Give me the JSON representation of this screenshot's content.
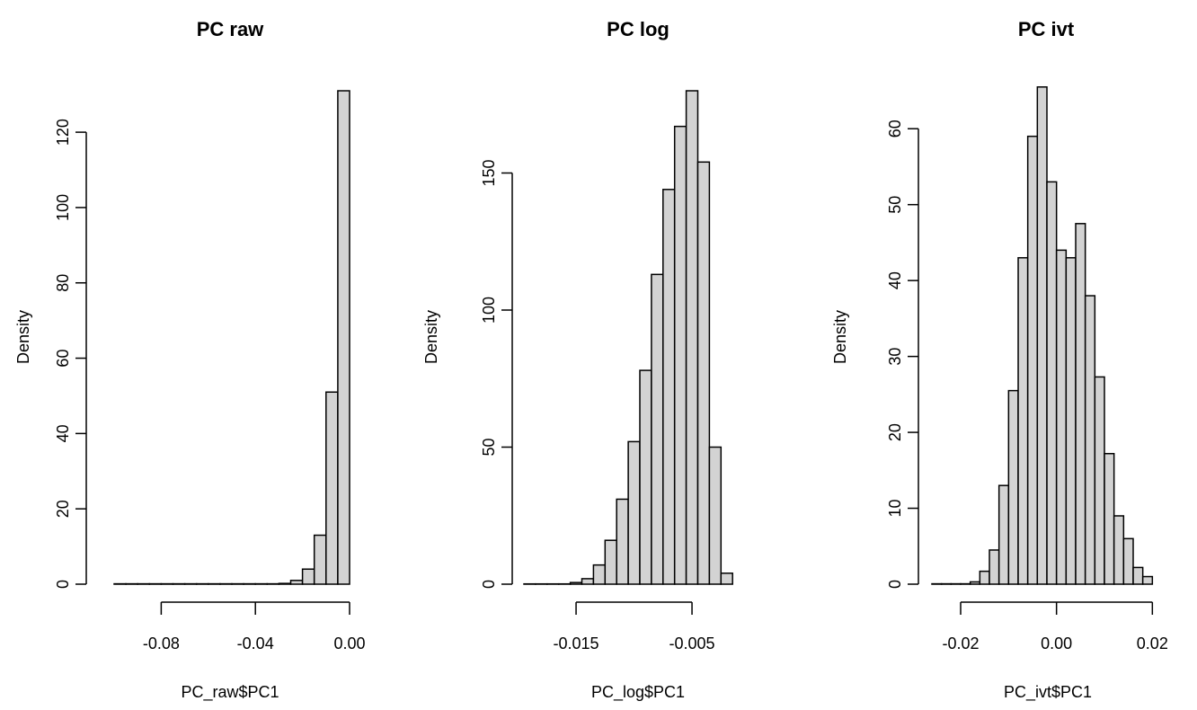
{
  "chart_data": [
    {
      "type": "histogram",
      "title": "PC raw",
      "xlabel": "PC_raw$PC1",
      "ylabel": "Density",
      "xlim": [
        -0.1,
        0.0
      ],
      "ylim": [
        0,
        131
      ],
      "x_ticks": [
        -0.08,
        -0.04,
        0.0
      ],
      "x_tick_labels": [
        "-0.08",
        "-0.04",
        "0.00"
      ],
      "y_ticks": [
        0,
        20,
        40,
        60,
        80,
        100,
        120
      ],
      "y_tick_labels": [
        "0",
        "20",
        "40",
        "60",
        "80",
        "100",
        "120"
      ],
      "bin_edges": [
        -0.1,
        -0.095,
        -0.09,
        -0.085,
        -0.08,
        -0.075,
        -0.07,
        -0.065,
        -0.06,
        -0.055,
        -0.05,
        -0.045,
        -0.04,
        -0.035,
        -0.03,
        -0.025,
        -0.02,
        -0.015,
        -0.01,
        -0.005,
        0.0
      ],
      "values": [
        0.1,
        0.1,
        0.1,
        0.1,
        0.1,
        0.1,
        0.1,
        0.1,
        0.1,
        0.1,
        0.1,
        0.1,
        0.1,
        0.1,
        0.2,
        1,
        4,
        13,
        51,
        131
      ],
      "bar_color": "#d3d3d3",
      "grid": false
    },
    {
      "type": "histogram",
      "title": "PC log",
      "xlabel": "PC_log$PC1",
      "ylabel": "Density",
      "xlim": [
        -0.0195,
        0.0005
      ],
      "ylim": [
        0,
        180
      ],
      "x_ticks": [
        -0.015,
        -0.005
      ],
      "x_tick_labels": [
        "-0.015",
        "-0.005"
      ],
      "y_ticks": [
        0,
        50,
        100,
        150
      ],
      "y_tick_labels": [
        "0",
        "50",
        "100",
        "150"
      ],
      "bin_edges": [
        -0.0195,
        -0.0185,
        -0.0175,
        -0.0165,
        -0.0155,
        -0.0145,
        -0.0135,
        -0.0125,
        -0.0115,
        -0.0105,
        -0.0095,
        -0.0085,
        -0.0075,
        -0.0065,
        -0.0055,
        -0.0045,
        -0.0035,
        -0.0025,
        -0.0015
      ],
      "values": [
        0.1,
        0.1,
        0.1,
        0.1,
        0.6,
        2,
        7,
        16,
        31,
        52,
        78,
        113,
        144,
        167,
        180,
        154,
        50,
        4
      ],
      "bar_color": "#d3d3d3",
      "grid": false
    },
    {
      "type": "histogram",
      "title": "PC ivt",
      "xlabel": "PC_ivt$PC1",
      "ylabel": "Density",
      "xlim": [
        -0.026,
        0.022
      ],
      "ylim": [
        0,
        65
      ],
      "x_ticks": [
        -0.02,
        0.0,
        0.02
      ],
      "x_tick_labels": [
        "-0.02",
        "0.00",
        "0.02"
      ],
      "y_ticks": [
        0,
        10,
        20,
        30,
        40,
        50,
        60
      ],
      "y_tick_labels": [
        "0",
        "10",
        "20",
        "30",
        "40",
        "50",
        "60"
      ],
      "bin_edges": [
        -0.026,
        -0.024,
        -0.022,
        -0.02,
        -0.018,
        -0.016,
        -0.014,
        -0.012,
        -0.01,
        -0.008,
        -0.006,
        -0.004,
        -0.002,
        0.0,
        0.002,
        0.004,
        0.006,
        0.008,
        0.01,
        0.012,
        0.014,
        0.016,
        0.018,
        0.02
      ],
      "values": [
        0.05,
        0.05,
        0.05,
        0.05,
        0.3,
        1.7,
        4.5,
        13,
        25.5,
        43,
        59,
        65.5,
        53,
        44,
        43,
        47.5,
        38,
        27.3,
        17.2,
        9,
        6,
        2.2,
        1
      ],
      "bar_color": "#d3d3d3",
      "grid": false
    }
  ]
}
